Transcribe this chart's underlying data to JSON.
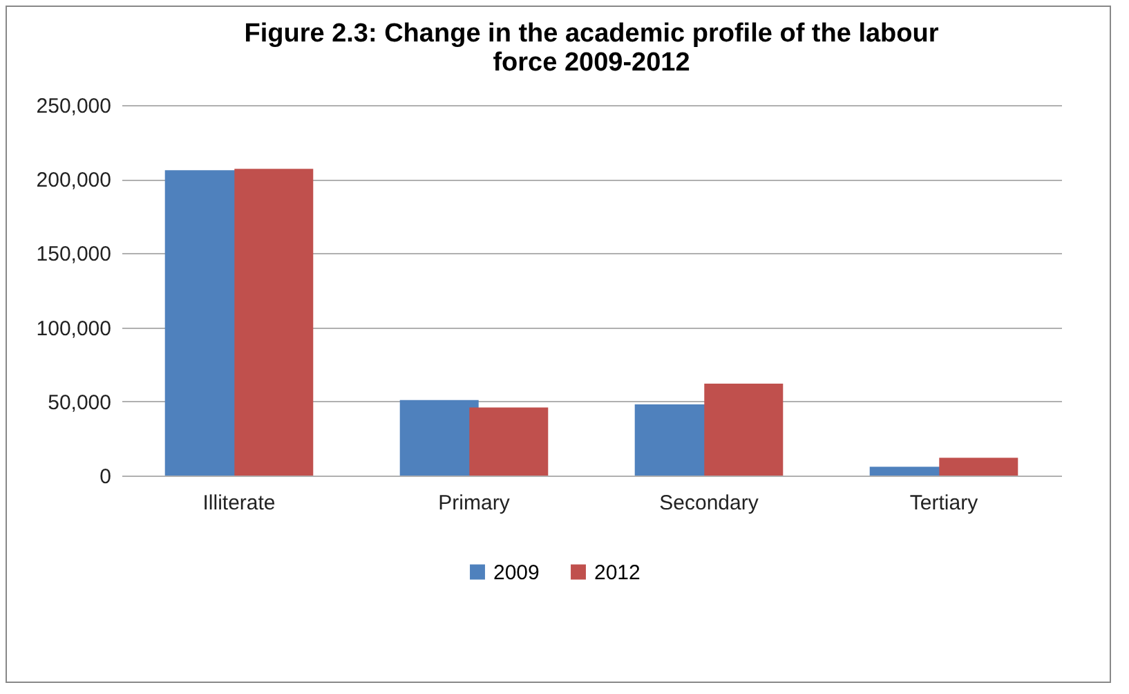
{
  "chart_data": {
    "type": "bar",
    "title": [
      "Figure 2.3: Change in the academic profile of the labour",
      "force 2009-2012"
    ],
    "categories": [
      "Illiterate",
      "Primary",
      "Secondary",
      "Tertiary"
    ],
    "series": [
      {
        "name": "2009",
        "color": "#4f81bd",
        "values": [
          206000,
          51000,
          48000,
          6000
        ]
      },
      {
        "name": "2012",
        "color": "#c0504d",
        "values": [
          207000,
          46000,
          62000,
          12000
        ]
      }
    ],
    "ylim": [
      0,
      250000
    ],
    "yticks": [
      {
        "value": 0,
        "label": "0"
      },
      {
        "value": 50000,
        "label": "50,000"
      },
      {
        "value": 100000,
        "label": "100,000"
      },
      {
        "value": 150000,
        "label": "150,000"
      },
      {
        "value": 200000,
        "label": "200,000"
      },
      {
        "value": 250000,
        "label": "250,000"
      }
    ],
    "grid": "y",
    "legend": "bottom"
  }
}
